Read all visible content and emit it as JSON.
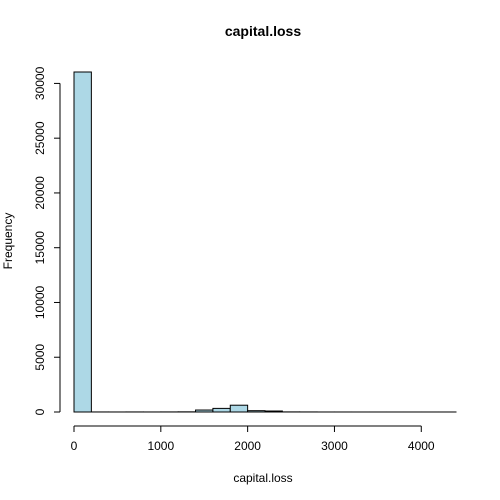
{
  "chart_data": {
    "type": "histogram",
    "title": "capital.loss",
    "xlabel": "capital.loss",
    "ylabel": "Frequency",
    "bar_color": "#add8e6",
    "bin_width": 200,
    "bins": [
      {
        "start": 0,
        "end": 200,
        "count": 31042
      },
      {
        "start": 200,
        "end": 400,
        "count": 5
      },
      {
        "start": 400,
        "end": 600,
        "count": 3
      },
      {
        "start": 600,
        "end": 800,
        "count": 6
      },
      {
        "start": 800,
        "end": 1000,
        "count": 4
      },
      {
        "start": 1000,
        "end": 1200,
        "count": 8
      },
      {
        "start": 1200,
        "end": 1400,
        "count": 15
      },
      {
        "start": 1400,
        "end": 1600,
        "count": 180
      },
      {
        "start": 1600,
        "end": 1800,
        "count": 330
      },
      {
        "start": 1800,
        "end": 2000,
        "count": 620
      },
      {
        "start": 2000,
        "end": 2200,
        "count": 120
      },
      {
        "start": 2200,
        "end": 2400,
        "count": 90
      },
      {
        "start": 2400,
        "end": 2600,
        "count": 10
      },
      {
        "start": 2600,
        "end": 2800,
        "count": 6
      },
      {
        "start": 2800,
        "end": 3000,
        "count": 2
      },
      {
        "start": 3000,
        "end": 3200,
        "count": 2
      },
      {
        "start": 3200,
        "end": 3400,
        "count": 1
      },
      {
        "start": 3400,
        "end": 3600,
        "count": 1
      },
      {
        "start": 3600,
        "end": 3800,
        "count": 1
      },
      {
        "start": 3800,
        "end": 4000,
        "count": 1
      },
      {
        "start": 4000,
        "end": 4200,
        "count": 1
      },
      {
        "start": 4200,
        "end": 4400,
        "count": 1
      }
    ],
    "xlim": [
      0,
      4400
    ],
    "ylim": [
      0,
      31042
    ],
    "x_ticks": [
      0,
      1000,
      2000,
      3000,
      4000
    ],
    "x_tick_labels": [
      "0",
      "1000",
      "2000",
      "3000",
      "4000"
    ],
    "y_ticks": [
      0,
      5000,
      10000,
      15000,
      20000,
      25000,
      30000
    ],
    "y_tick_labels": [
      "0",
      "5000",
      "10000",
      "15000",
      "20000",
      "25000",
      "30000"
    ],
    "grid": false,
    "legend": "none"
  }
}
